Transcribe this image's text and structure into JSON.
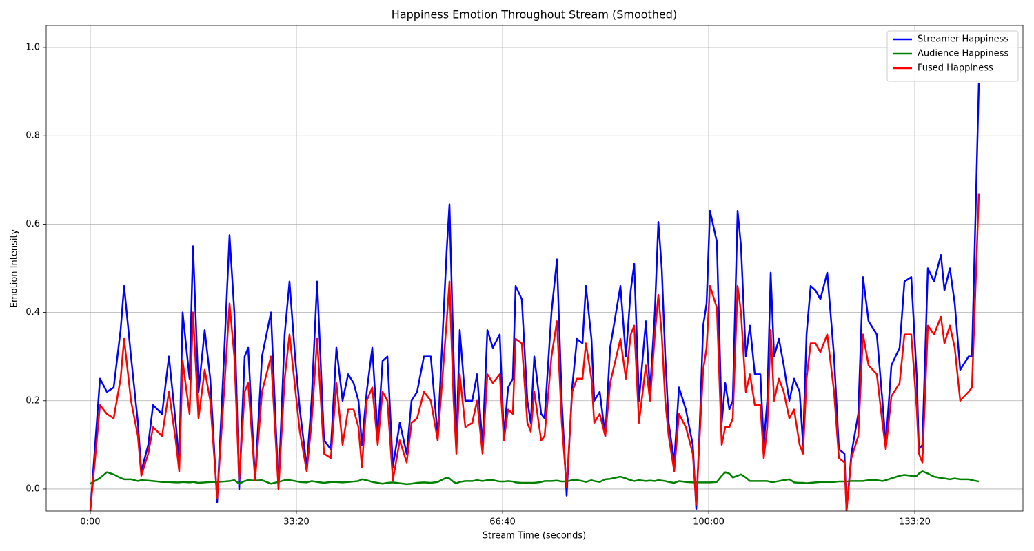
{
  "chart_data": {
    "type": "line",
    "title": "Happiness Emotion Throughout Stream (Smoothed)",
    "x_label": "Stream Time (seconds)",
    "y_label": "Emotion Intensity",
    "grid": true,
    "legend_position": "upper right",
    "xlim": [
      -428,
      9050
    ],
    "ylim": [
      -0.05,
      1.05
    ],
    "xticks": [
      {
        "value": 0,
        "label": "0:00"
      },
      {
        "value": 2000,
        "label": "33:20"
      },
      {
        "value": 4000,
        "label": "66:40"
      },
      {
        "value": 6000,
        "label": "100:00"
      },
      {
        "value": 8000,
        "label": "133:20"
      }
    ],
    "yticks": [
      {
        "value": 0,
        "label": "0.0"
      },
      0.2,
      0.4,
      0.6,
      0.8,
      {
        "value": 1,
        "label": "1.0"
      }
    ],
    "x": [
      0,
      94,
      161,
      227,
      294,
      328,
      395,
      462,
      495,
      562,
      609,
      696,
      763,
      829,
      863,
      896,
      963,
      997,
      1050,
      1110,
      1164,
      1231,
      1298,
      1351,
      1398,
      1445,
      1498,
      1532,
      1599,
      1666,
      1753,
      1826,
      1886,
      1933,
      1987,
      2033,
      2100,
      2147,
      2201,
      2268,
      2334,
      2388,
      2448,
      2502,
      2555,
      2602,
      2635,
      2682,
      2736,
      2789,
      2836,
      2883,
      2936,
      3003,
      3070,
      3117,
      3171,
      3237,
      3304,
      3371,
      3458,
      3485,
      3525,
      3552,
      3585,
      3639,
      3706,
      3753,
      3806,
      3853,
      3906,
      3973,
      4013,
      4054,
      4100,
      4127,
      4187,
      4241,
      4274,
      4308,
      4375,
      4408,
      4475,
      4528,
      4575,
      4622,
      4676,
      4722,
      4776,
      4809,
      4863,
      4890,
      4943,
      4997,
      5044,
      5144,
      5197,
      5244,
      5278,
      5324,
      5391,
      5431,
      5478,
      5512,
      5545,
      5579,
      5612,
      5666,
      5712,
      5779,
      5846,
      5880,
      5913,
      5947,
      5980,
      6013,
      6080,
      6127,
      6161,
      6201,
      6234,
      6281,
      6314,
      6361,
      6401,
      6448,
      6502,
      6535,
      6569,
      6602,
      6635,
      6682,
      6729,
      6783,
      6829,
      6883,
      6916,
      6950,
      6990,
      7037,
      7084,
      7151,
      7217,
      7264,
      7318,
      7338,
      7385,
      7452,
      7498,
      7552,
      7632,
      7686,
      7719,
      7773,
      7853,
      7900,
      7966,
      8020,
      8040,
      8074,
      8127,
      8187,
      8254,
      8288,
      8341,
      8388,
      8441,
      8522,
      8555,
      8622
    ],
    "series": [
      {
        "name": "Streamer Happiness",
        "color": "#0000ff",
        "values": [
          -0.05,
          0.25,
          0.22,
          0.23,
          0.36,
          0.46,
          0.3,
          0.15,
          0.04,
          0.1,
          0.19,
          0.17,
          0.3,
          0.15,
          0.06,
          0.4,
          0.25,
          0.55,
          0.22,
          0.36,
          0.25,
          -0.03,
          0.3,
          0.575,
          0.4,
          0.0,
          0.3,
          0.32,
          0.02,
          0.3,
          0.4,
          0.0,
          0.35,
          0.47,
          0.3,
          0.18,
          0.05,
          0.2,
          0.47,
          0.11,
          0.09,
          0.32,
          0.2,
          0.26,
          0.24,
          0.2,
          0.1,
          0.22,
          0.32,
          0.12,
          0.29,
          0.3,
          0.05,
          0.15,
          0.08,
          0.2,
          0.22,
          0.3,
          0.3,
          0.12,
          0.54,
          0.645,
          0.3,
          0.1,
          0.36,
          0.2,
          0.2,
          0.26,
          0.1,
          0.36,
          0.32,
          0.35,
          0.12,
          0.23,
          0.25,
          0.46,
          0.43,
          0.2,
          0.15,
          0.3,
          0.17,
          0.16,
          0.4,
          0.52,
          0.2,
          -0.015,
          0.23,
          0.34,
          0.33,
          0.46,
          0.34,
          0.2,
          0.22,
          0.12,
          0.32,
          0.46,
          0.3,
          0.45,
          0.51,
          0.2,
          0.38,
          0.22,
          0.4,
          0.605,
          0.5,
          0.3,
          0.15,
          0.06,
          0.23,
          0.18,
          0.1,
          -0.045,
          0.14,
          0.37,
          0.42,
          0.63,
          0.56,
          0.15,
          0.24,
          0.18,
          0.2,
          0.63,
          0.55,
          0.3,
          0.37,
          0.26,
          0.26,
          0.1,
          0.2,
          0.49,
          0.3,
          0.34,
          0.28,
          0.2,
          0.25,
          0.22,
          0.1,
          0.35,
          0.46,
          0.45,
          0.43,
          0.49,
          0.3,
          0.09,
          0.08,
          -0.05,
          0.08,
          0.17,
          0.48,
          0.38,
          0.35,
          0.2,
          0.1,
          0.28,
          0.32,
          0.47,
          0.48,
          0.25,
          0.09,
          0.1,
          0.5,
          0.47,
          0.53,
          0.45,
          0.5,
          0.42,
          0.27,
          0.3,
          0.3,
          0.92
        ]
      },
      {
        "name": "Audience Happiness",
        "color": "#008000",
        "values": [
          0.012,
          0.025,
          0.038,
          0.033,
          0.025,
          0.022,
          0.022,
          0.018,
          0.02,
          0.019,
          0.018,
          0.016,
          0.016,
          0.015,
          0.015,
          0.016,
          0.015,
          0.016,
          0.014,
          0.015,
          0.016,
          0.016,
          0.017,
          0.018,
          0.02,
          0.012,
          0.018,
          0.02,
          0.019,
          0.02,
          0.012,
          0.016,
          0.02,
          0.02,
          0.018,
          0.016,
          0.015,
          0.018,
          0.016,
          0.014,
          0.016,
          0.016,
          0.015,
          0.016,
          0.017,
          0.018,
          0.022,
          0.02,
          0.016,
          0.014,
          0.012,
          0.014,
          0.015,
          0.013,
          0.011,
          0.012,
          0.014,
          0.015,
          0.014,
          0.016,
          0.026,
          0.024,
          0.016,
          0.013,
          0.016,
          0.018,
          0.018,
          0.02,
          0.018,
          0.02,
          0.02,
          0.017,
          0.017,
          0.018,
          0.017,
          0.015,
          0.014,
          0.014,
          0.014,
          0.014,
          0.016,
          0.018,
          0.018,
          0.019,
          0.017,
          0.017,
          0.02,
          0.02,
          0.018,
          0.016,
          0.02,
          0.018,
          0.016,
          0.022,
          0.023,
          0.028,
          0.024,
          0.02,
          0.018,
          0.02,
          0.018,
          0.019,
          0.018,
          0.02,
          0.019,
          0.018,
          0.016,
          0.014,
          0.018,
          0.016,
          0.015,
          0.015,
          0.015,
          0.015,
          0.015,
          0.015,
          0.016,
          0.03,
          0.038,
          0.035,
          0.026,
          0.03,
          0.033,
          0.026,
          0.018,
          0.018,
          0.018,
          0.018,
          0.018,
          0.016,
          0.016,
          0.018,
          0.02,
          0.022,
          0.015,
          0.014,
          0.014,
          0.013,
          0.014,
          0.015,
          0.016,
          0.016,
          0.016,
          0.017,
          0.017,
          0.017,
          0.018,
          0.018,
          0.018,
          0.02,
          0.02,
          0.018,
          0.02,
          0.024,
          0.03,
          0.032,
          0.03,
          0.03,
          0.035,
          0.04,
          0.035,
          0.028,
          0.025,
          0.024,
          0.022,
          0.024,
          0.022,
          0.022,
          0.02,
          0.017
        ]
      },
      {
        "name": "Fused Happiness",
        "color": "#ff0000",
        "values": [
          -0.05,
          0.19,
          0.17,
          0.16,
          0.25,
          0.34,
          0.2,
          0.12,
          0.03,
          0.08,
          0.14,
          0.12,
          0.22,
          0.11,
          0.04,
          0.29,
          0.17,
          0.4,
          0.16,
          0.27,
          0.2,
          -0.02,
          0.22,
          0.42,
          0.3,
          0.02,
          0.22,
          0.24,
          0.02,
          0.22,
          0.3,
          0.0,
          0.25,
          0.35,
          0.23,
          0.13,
          0.04,
          0.15,
          0.34,
          0.08,
          0.07,
          0.24,
          0.1,
          0.18,
          0.18,
          0.14,
          0.05,
          0.2,
          0.23,
          0.1,
          0.22,
          0.2,
          0.02,
          0.11,
          0.06,
          0.15,
          0.16,
          0.22,
          0.2,
          0.11,
          0.38,
          0.47,
          0.2,
          0.08,
          0.26,
          0.14,
          0.15,
          0.2,
          0.08,
          0.26,
          0.24,
          0.26,
          0.11,
          0.18,
          0.17,
          0.34,
          0.33,
          0.15,
          0.13,
          0.22,
          0.11,
          0.12,
          0.3,
          0.38,
          0.15,
          0.005,
          0.22,
          0.25,
          0.25,
          0.33,
          0.25,
          0.15,
          0.17,
          0.12,
          0.24,
          0.34,
          0.25,
          0.35,
          0.37,
          0.15,
          0.28,
          0.2,
          0.35,
          0.44,
          0.35,
          0.2,
          0.12,
          0.04,
          0.17,
          0.14,
          0.08,
          -0.035,
          0.12,
          0.27,
          0.32,
          0.46,
          0.41,
          0.1,
          0.14,
          0.14,
          0.16,
          0.46,
          0.4,
          0.22,
          0.26,
          0.19,
          0.19,
          0.07,
          0.14,
          0.36,
          0.2,
          0.25,
          0.22,
          0.16,
          0.18,
          0.1,
          0.08,
          0.25,
          0.33,
          0.33,
          0.31,
          0.35,
          0.22,
          0.07,
          0.06,
          -0.05,
          0.07,
          0.12,
          0.35,
          0.28,
          0.26,
          0.15,
          0.09,
          0.21,
          0.24,
          0.35,
          0.35,
          0.18,
          0.08,
          0.06,
          0.37,
          0.35,
          0.39,
          0.33,
          0.37,
          0.32,
          0.2,
          0.22,
          0.23,
          0.67
        ]
      }
    ]
  }
}
